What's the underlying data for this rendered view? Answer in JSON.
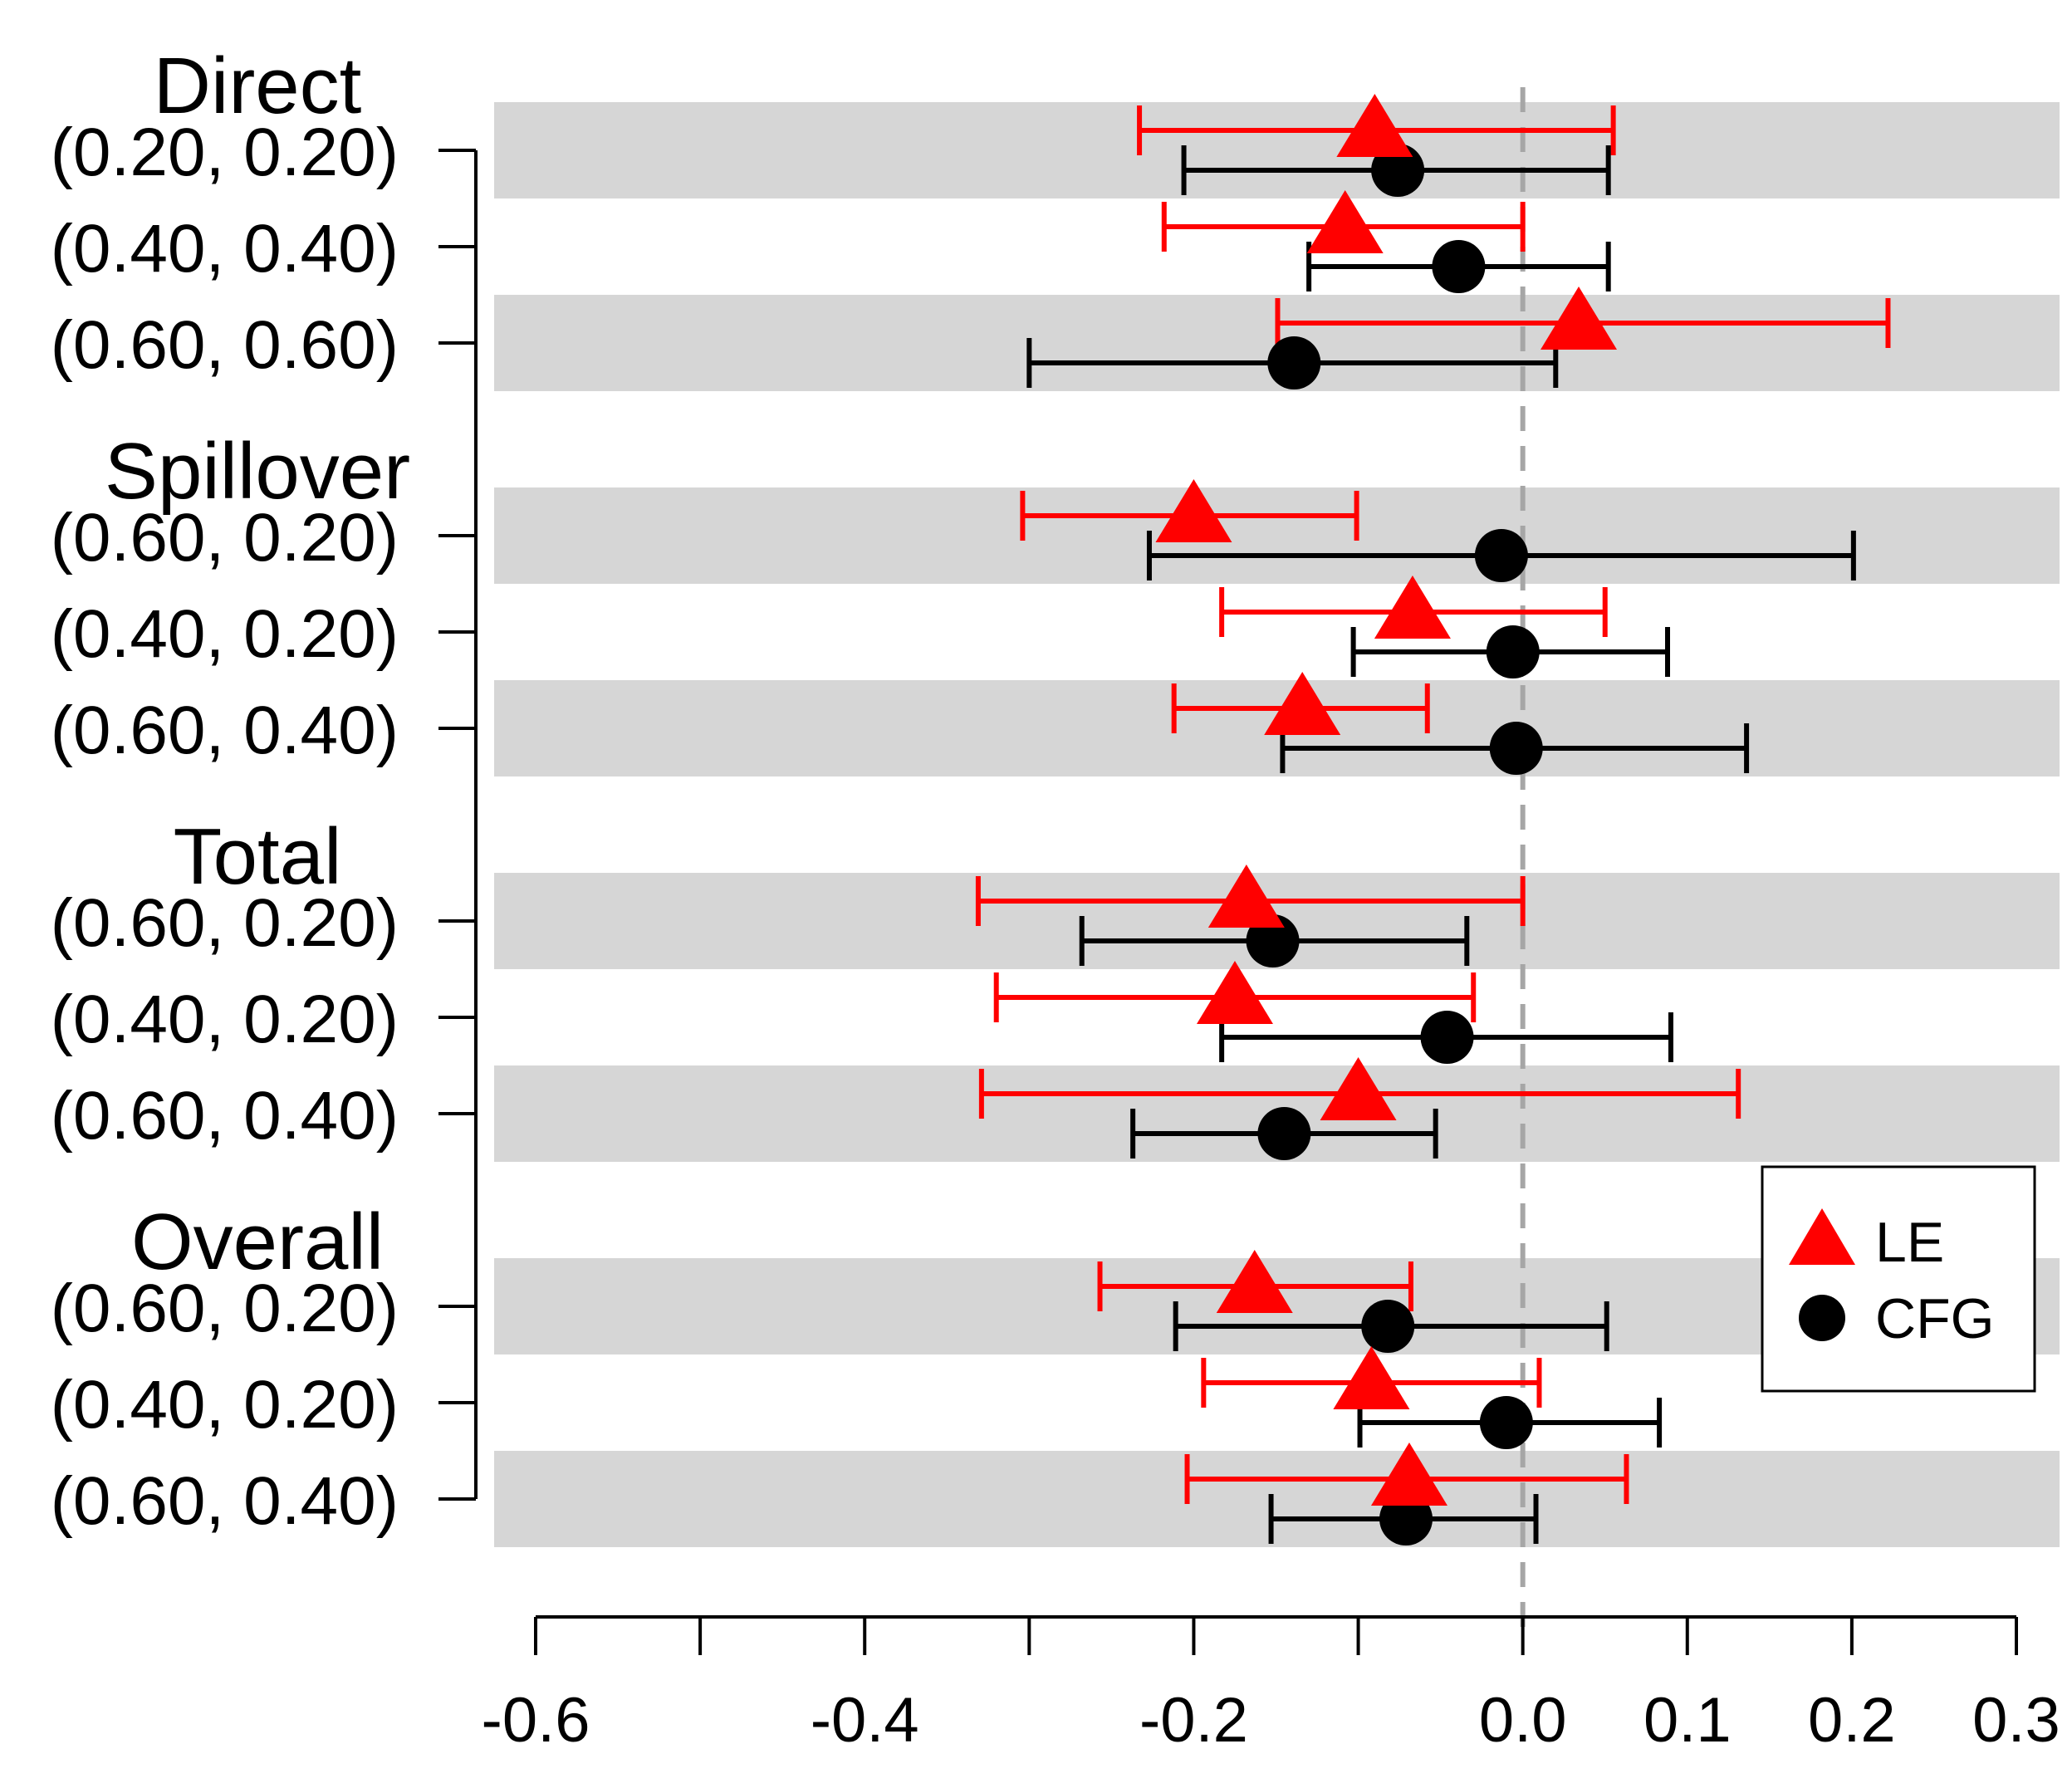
{
  "chart_data": {
    "type": "forest",
    "xlim": [
      -0.6,
      0.3
    ],
    "xaxis_break": true,
    "xticks": [
      {
        "value": -0.6,
        "label": "-0.6"
      },
      {
        "value": -0.5,
        "label": ""
      },
      {
        "value": -0.4,
        "label": "-0.4"
      },
      {
        "value": -0.3,
        "label": ""
      },
      {
        "value": -0.2,
        "label": "-0.2"
      },
      {
        "value": -0.1,
        "label": ""
      },
      {
        "value": 0.0,
        "label": "0.0"
      },
      {
        "value": 0.1,
        "label": "0.1"
      },
      {
        "value": 0.2,
        "label": "0.2"
      },
      {
        "value": 0.3,
        "label": "0.3"
      }
    ],
    "reference_line": 0,
    "legend": {
      "position": "bottom-right",
      "entries": [
        {
          "name": "LE",
          "shape": "triangle",
          "color": "#ff0000"
        },
        {
          "name": "CFG",
          "shape": "circle",
          "color": "#000000"
        }
      ]
    },
    "groups": [
      {
        "title": "Direct",
        "rows": [
          {
            "label": "(0.20, 0.20)",
            "LE": {
              "est": -0.09,
              "lo": -0.233,
              "hi": 0.055
            },
            "CFG": {
              "est": -0.076,
              "lo": -0.206,
              "hi": 0.052
            }
          },
          {
            "label": "(0.40, 0.40)",
            "LE": {
              "est": -0.108,
              "lo": -0.218,
              "hi": 0.0
            },
            "CFG": {
              "est": -0.039,
              "lo": -0.13,
              "hi": 0.052
            }
          },
          {
            "label": "(0.60, 0.60)",
            "LE": {
              "est": 0.034,
              "lo": -0.149,
              "hi": 0.222
            },
            "CFG": {
              "est": -0.139,
              "lo": -0.3,
              "hi": 0.02
            }
          }
        ]
      },
      {
        "title": "Spillover",
        "rows": [
          {
            "label": "(0.60, 0.20)",
            "LE": {
              "est": -0.2,
              "lo": -0.304,
              "hi": -0.101
            },
            "CFG": {
              "est": -0.013,
              "lo": -0.227,
              "hi": 0.201
            }
          },
          {
            "label": "(0.40, 0.20)",
            "LE": {
              "est": -0.067,
              "lo": -0.183,
              "hi": 0.05
            },
            "CFG": {
              "est": -0.006,
              "lo": -0.103,
              "hi": 0.088
            }
          },
          {
            "label": "(0.60, 0.40)",
            "LE": {
              "est": -0.134,
              "lo": -0.212,
              "hi": -0.058
            },
            "CFG": {
              "est": -0.004,
              "lo": -0.146,
              "hi": 0.136
            }
          }
        ]
      },
      {
        "title": "Total",
        "rows": [
          {
            "label": "(0.60, 0.20)",
            "LE": {
              "est": -0.168,
              "lo": -0.331,
              "hi": 0.0
            },
            "CFG": {
              "est": -0.152,
              "lo": -0.268,
              "hi": -0.034
            }
          },
          {
            "label": "(0.40, 0.20)",
            "LE": {
              "est": -0.175,
              "lo": -0.32,
              "hi": -0.03
            },
            "CFG": {
              "est": -0.046,
              "lo": -0.183,
              "hi": 0.09
            }
          },
          {
            "label": "(0.60, 0.40)",
            "LE": {
              "est": -0.1,
              "lo": -0.329,
              "hi": 0.131
            },
            "CFG": {
              "est": -0.145,
              "lo": -0.237,
              "hi": -0.053
            }
          }
        ]
      },
      {
        "title": "Overall",
        "rows": [
          {
            "label": "(0.60, 0.20)",
            "LE": {
              "est": -0.163,
              "lo": -0.257,
              "hi": -0.068
            },
            "CFG": {
              "est": -0.082,
              "lo": -0.211,
              "hi": 0.051
            }
          },
          {
            "label": "(0.40, 0.20)",
            "LE": {
              "est": -0.092,
              "lo": -0.194,
              "hi": 0.01
            },
            "CFG": {
              "est": -0.01,
              "lo": -0.099,
              "hi": 0.083
            }
          },
          {
            "label": "(0.60, 0.40)",
            "LE": {
              "est": -0.069,
              "lo": -0.204,
              "hi": 0.063
            },
            "CFG": {
              "est": -0.071,
              "lo": -0.153,
              "hi": 0.008
            }
          }
        ]
      }
    ]
  }
}
